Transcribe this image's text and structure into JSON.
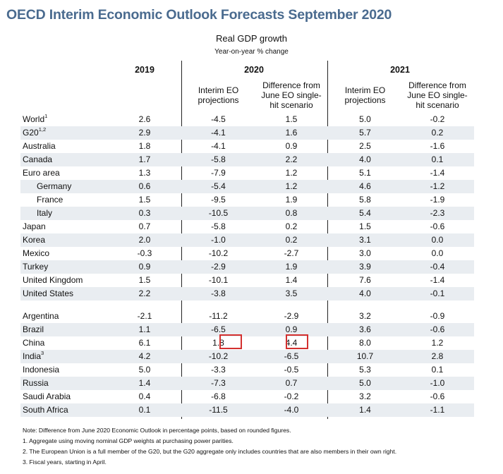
{
  "title": "OECD Interim Economic Outlook Forecasts September 2020",
  "subtitle": "Real GDP growth",
  "unit": "Year-on-year % change",
  "years": {
    "y2019": "2019",
    "y2020": "2020",
    "y2021": "2021"
  },
  "column_headers": {
    "interim_2020": [
      "Interim EO",
      "projections"
    ],
    "diff_2020": [
      "Difference from",
      "June EO single-",
      "hit scenario"
    ],
    "interim_2021": [
      "Interim EO",
      "projections"
    ],
    "diff_2021": [
      "Difference from",
      "June EO single-",
      "hit scenario"
    ]
  },
  "rows": [
    {
      "country": "World",
      "sup": "1",
      "v2019": "2.6",
      "i2020": "-4.5",
      "d2020": "1.5",
      "i2021": "5.0",
      "d2021": "-0.2"
    },
    {
      "country": "G20",
      "sup": "1,2",
      "v2019": "2.9",
      "i2020": "-4.1",
      "d2020": "1.6",
      "i2021": "5.7",
      "d2021": "0.2"
    },
    {
      "country": "Australia",
      "sup": "",
      "v2019": "1.8",
      "i2020": "-4.1",
      "d2020": "0.9",
      "i2021": "2.5",
      "d2021": "-1.6"
    },
    {
      "country": "Canada",
      "sup": "",
      "v2019": "1.7",
      "i2020": "-5.8",
      "d2020": "2.2",
      "i2021": "4.0",
      "d2021": "0.1"
    },
    {
      "country": "Euro area",
      "sup": "",
      "v2019": "1.3",
      "i2020": "-7.9",
      "d2020": "1.2",
      "i2021": "5.1",
      "d2021": "-1.4"
    },
    {
      "country": "Germany",
      "sup": "",
      "v2019": "0.6",
      "i2020": "-5.4",
      "d2020": "1.2",
      "i2021": "4.6",
      "d2021": "-1.2"
    },
    {
      "country": "France",
      "sup": "",
      "v2019": "1.5",
      "i2020": "-9.5",
      "d2020": "1.9",
      "i2021": "5.8",
      "d2021": "-1.9"
    },
    {
      "country": "Italy",
      "sup": "",
      "v2019": "0.3",
      "i2020": "-10.5",
      "d2020": "0.8",
      "i2021": "5.4",
      "d2021": "-2.3"
    },
    {
      "country": "Japan",
      "sup": "",
      "v2019": "0.7",
      "i2020": "-5.8",
      "d2020": "0.2",
      "i2021": "1.5",
      "d2021": "-0.6"
    },
    {
      "country": "Korea",
      "sup": "",
      "v2019": "2.0",
      "i2020": "-1.0",
      "d2020": "0.2",
      "i2021": "3.1",
      "d2021": "0.0"
    },
    {
      "country": "Mexico",
      "sup": "",
      "v2019": "-0.3",
      "i2020": "-10.2",
      "d2020": "-2.7",
      "i2021": "3.0",
      "d2021": "0.0"
    },
    {
      "country": "Turkey",
      "sup": "",
      "v2019": "0.9",
      "i2020": "-2.9",
      "d2020": "1.9",
      "i2021": "3.9",
      "d2021": "-0.4"
    },
    {
      "country": "United Kingdom",
      "sup": "",
      "v2019": "1.5",
      "i2020": "-10.1",
      "d2020": "1.4",
      "i2021": "7.6",
      "d2021": "-1.4"
    },
    {
      "country": "United States",
      "sup": "",
      "v2019": "2.2",
      "i2020": "-3.8",
      "d2020": "3.5",
      "i2021": "4.0",
      "d2021": "-0.1"
    },
    {
      "country": "Argentina",
      "sup": "",
      "v2019": "-2.1",
      "i2020": "-11.2",
      "d2020": "-2.9",
      "i2021": "3.2",
      "d2021": "-0.9"
    },
    {
      "country": "Brazil",
      "sup": "",
      "v2019": "1.1",
      "i2020": "-6.5",
      "d2020": "0.9",
      "i2021": "3.6",
      "d2021": "-0.6"
    },
    {
      "country": "China",
      "sup": "",
      "v2019": "6.1",
      "i2020": "1.8",
      "d2020": "4.4",
      "i2021": "8.0",
      "d2021": "1.2"
    },
    {
      "country": "India",
      "sup": "3",
      "v2019": "4.2",
      "i2020": "-10.2",
      "d2020": "-6.5",
      "i2021": "10.7",
      "d2021": "2.8"
    },
    {
      "country": "Indonesia",
      "sup": "",
      "v2019": "5.0",
      "i2020": "-3.3",
      "d2020": "-0.5",
      "i2021": "5.3",
      "d2021": "0.1"
    },
    {
      "country": "Russia",
      "sup": "",
      "v2019": "1.4",
      "i2020": "-7.3",
      "d2020": "0.7",
      "i2021": "5.0",
      "d2021": "-1.0"
    },
    {
      "country": "Saudi Arabia",
      "sup": "",
      "v2019": "0.4",
      "i2020": "-6.8",
      "d2020": "-0.2",
      "i2021": "3.2",
      "d2021": "-0.6"
    },
    {
      "country": "South Africa",
      "sup": "",
      "v2019": "0.1",
      "i2020": "-11.5",
      "d2020": "-4.0",
      "i2021": "1.4",
      "d2021": "-1.1"
    }
  ],
  "notes": [
    "Note: Difference from June 2020 Economic Outlook in percentage points, based on rounded figures.",
    "1. Aggregate using moving nominal GDP weights at purchasing power parities.",
    "2. The European Union is a full member of the G20, but the G20 aggregate only includes countries that are also members in their own right.",
    "3. Fiscal years, starting in April."
  ],
  "colors": {
    "title": "#4a6b8f",
    "shade": "#e9edf1",
    "highlight": "#d3302f"
  }
}
